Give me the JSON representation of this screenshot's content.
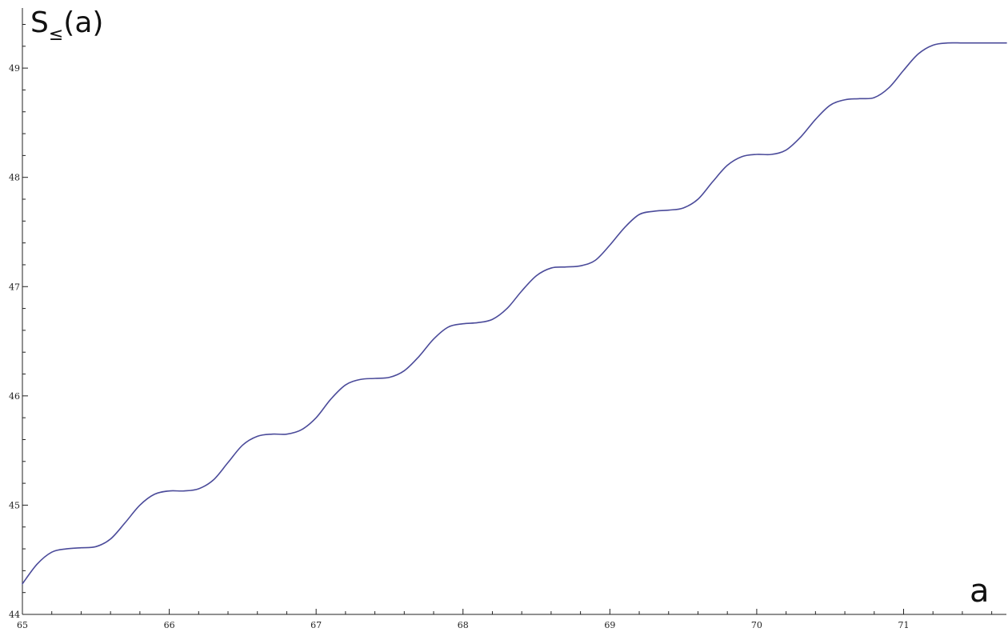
{
  "chart_data": {
    "type": "line",
    "title": "",
    "xlabel": "a",
    "ylabel": "S≤(a)",
    "ylabel_main": "S",
    "ylabel_sub": "≤",
    "ylabel_args": "(a)",
    "xlim": [
      65,
      71.7
    ],
    "ylim": [
      44,
      49.55
    ],
    "x_ticks": [
      65,
      66,
      67,
      68,
      69,
      70,
      71
    ],
    "x_tick_labels": [
      "65",
      "66",
      "67",
      "68",
      "69",
      "70",
      "71"
    ],
    "y_ticks": [
      44,
      45,
      46,
      47,
      48,
      49
    ],
    "y_tick_labels": [
      "44",
      "45",
      "46",
      "47",
      "48",
      "49"
    ],
    "grid": false,
    "colors": {
      "line": "#4b4b9a",
      "axis": "#222222"
    },
    "series": [
      {
        "x": [
          65.0,
          65.1,
          65.2,
          65.3,
          65.4,
          65.5,
          65.6,
          65.7,
          65.8,
          65.9,
          66.0,
          66.1,
          66.2,
          66.3,
          66.4,
          66.5,
          66.6,
          66.7,
          66.8,
          66.9,
          67.0,
          67.1,
          67.2,
          67.3,
          67.4,
          67.5,
          67.6,
          67.7,
          67.8,
          67.9,
          68.0,
          68.1,
          68.2,
          68.3,
          68.4,
          68.5,
          68.6,
          68.7,
          68.8,
          68.9,
          69.0,
          69.1,
          69.2,
          69.3,
          69.4,
          69.5,
          69.6,
          69.7,
          69.8,
          69.9,
          70.0,
          70.1,
          70.2,
          70.3,
          70.4,
          70.5,
          70.6,
          70.7,
          70.8,
          70.9,
          71.0,
          71.1,
          71.2,
          71.3,
          71.4,
          71.5,
          71.6,
          71.7
        ],
        "values": [
          44.28,
          44.46,
          44.57,
          44.6,
          44.61,
          44.62,
          44.69,
          44.84,
          45.0,
          45.1,
          45.13,
          45.13,
          45.15,
          45.23,
          45.39,
          45.55,
          45.63,
          45.65,
          45.65,
          45.69,
          45.8,
          45.97,
          46.1,
          46.15,
          46.16,
          46.17,
          46.23,
          46.36,
          46.52,
          46.63,
          46.66,
          46.67,
          46.7,
          46.8,
          46.96,
          47.1,
          47.17,
          47.18,
          47.19,
          47.24,
          47.38,
          47.54,
          47.66,
          47.69,
          47.7,
          47.72,
          47.8,
          47.96,
          48.11,
          48.19,
          48.21,
          48.21,
          48.25,
          48.37,
          48.53,
          48.66,
          48.71,
          48.72,
          48.73,
          48.82,
          48.98,
          49.13,
          49.21,
          49.23,
          49.23,
          49.23,
          49.23,
          49.23
        ]
      }
    ]
  }
}
